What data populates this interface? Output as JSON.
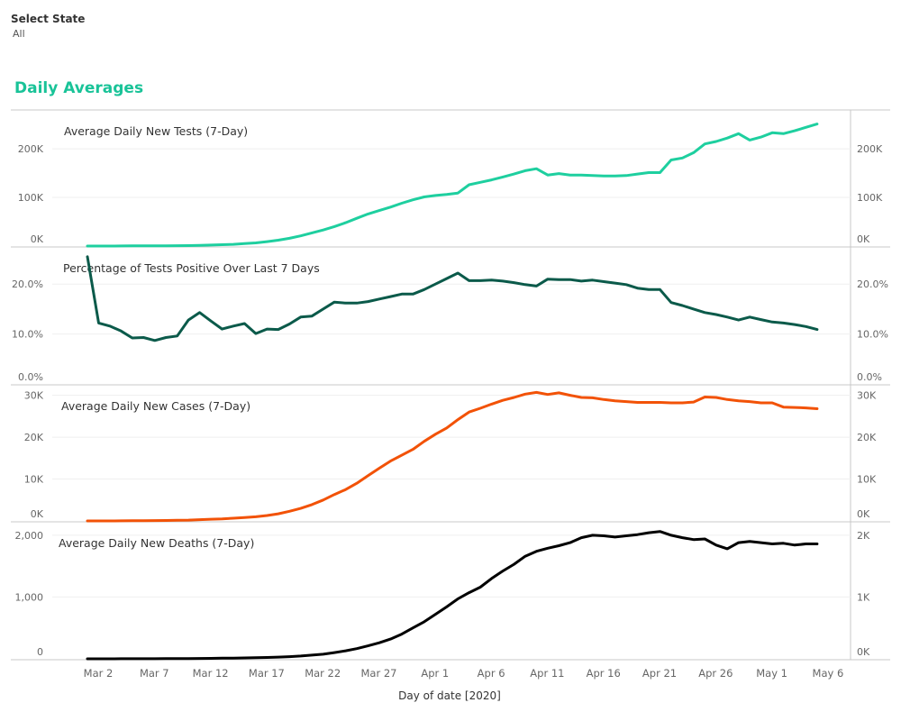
{
  "filter": {
    "label": "Select State",
    "value": "All"
  },
  "dashboard": {
    "title": "Daily Averages"
  },
  "colors": {
    "tests": "#1ecf9f",
    "positive": "#0b5a4a",
    "cases": "#f25207",
    "deaths": "#000000",
    "title": "#19c398"
  },
  "chart_data": {
    "type": "line",
    "xlabel": "Day of date [2020]",
    "x_ticks": [
      "Mar 2",
      "Mar 7",
      "Mar 12",
      "Mar 17",
      "Mar 22",
      "Mar 27",
      "Apr 1",
      "Apr 6",
      "Apr 11",
      "Apr 16",
      "Apr 21",
      "Apr 26",
      "May 1",
      "May 6"
    ],
    "x_start": "Mar 1",
    "x": [
      "Mar 1",
      "Mar 2",
      "Mar 3",
      "Mar 4",
      "Mar 5",
      "Mar 6",
      "Mar 7",
      "Mar 8",
      "Mar 9",
      "Mar 10",
      "Mar 11",
      "Mar 12",
      "Mar 13",
      "Mar 14",
      "Mar 15",
      "Mar 16",
      "Mar 17",
      "Mar 18",
      "Mar 19",
      "Mar 20",
      "Mar 21",
      "Mar 22",
      "Mar 23",
      "Mar 24",
      "Mar 25",
      "Mar 26",
      "Mar 27",
      "Mar 28",
      "Mar 29",
      "Mar 30",
      "Mar 31",
      "Apr 1",
      "Apr 2",
      "Apr 3",
      "Apr 4",
      "Apr 5",
      "Apr 6",
      "Apr 7",
      "Apr 8",
      "Apr 9",
      "Apr 10",
      "Apr 11",
      "Apr 12",
      "Apr 13",
      "Apr 14",
      "Apr 15",
      "Apr 16",
      "Apr 17",
      "Apr 18",
      "Apr 19",
      "Apr 20",
      "Apr 21",
      "Apr 22",
      "Apr 23",
      "Apr 24",
      "Apr 25",
      "Apr 26",
      "Apr 27",
      "Apr 28",
      "Apr 29",
      "Apr 30",
      "May 1",
      "May 2",
      "May 3",
      "May 4",
      "May 5"
    ],
    "grid": true,
    "panels": [
      {
        "name": "tests",
        "title": "Average Daily New Tests (7-Day)",
        "color": "#1ecf9f",
        "ylim": [
          0,
          265000
        ],
        "y_ticks": [
          0,
          100000,
          200000
        ],
        "y_tick_labels_left": [
          "0K",
          "100K",
          "200K"
        ],
        "y_tick_labels_right": [
          "0K",
          "100K",
          "200K"
        ],
        "values": [
          0,
          0,
          0,
          200,
          300,
          400,
          500,
          600,
          800,
          1000,
          1500,
          2000,
          2800,
          3500,
          5000,
          6500,
          9000,
          12000,
          16000,
          21000,
          27000,
          33000,
          40000,
          48000,
          57000,
          66000,
          73000,
          80000,
          88000,
          95000,
          101000,
          104000,
          106000,
          109000,
          126000,
          131000,
          136000,
          142000,
          148000,
          155000,
          159000,
          146000,
          149000,
          146000,
          146000,
          145000,
          144000,
          144000,
          145000,
          148000,
          151000,
          151000,
          177000,
          181000,
          192000,
          210000,
          215000,
          222000,
          231000,
          218000,
          224000,
          233000,
          231000,
          237000,
          244000,
          251000
        ]
      },
      {
        "name": "positive",
        "title": "Percentage of Tests Positive Over Last 7 Days",
        "color": "#0b5a4a",
        "ylim": [
          0,
          26
        ],
        "y_ticks": [
          0,
          10,
          20
        ],
        "y_tick_labels_left": [
          "0.0%",
          "10.0%",
          "20.0%"
        ],
        "y_tick_labels_right": [
          "0.0%",
          "10.0%",
          "20.0%"
        ],
        "values": [
          25.5,
          12.2,
          11.6,
          10.6,
          9.2,
          9.3,
          8.7,
          9.3,
          9.6,
          12.8,
          14.3,
          12.6,
          11.0,
          11.6,
          12.1,
          10.1,
          11.0,
          10.9,
          12.0,
          13.4,
          13.6,
          15.0,
          16.4,
          16.2,
          16.2,
          16.5,
          17.0,
          17.5,
          18.0,
          18.0,
          18.9,
          20.0,
          21.1,
          22.2,
          20.7,
          20.7,
          20.8,
          20.6,
          20.3,
          19.9,
          19.6,
          21.0,
          20.9,
          20.9,
          20.6,
          20.8,
          20.5,
          20.2,
          19.9,
          19.2,
          18.9,
          18.9,
          16.3,
          15.7,
          15.0,
          14.3,
          13.9,
          13.4,
          12.8,
          13.4,
          12.9,
          12.4,
          12.2,
          11.9,
          11.5,
          10.9
        ]
      },
      {
        "name": "cases",
        "title": "Average Daily New Cases (7-Day)",
        "color": "#f25207",
        "ylim": [
          0,
          31000
        ],
        "y_ticks": [
          0,
          10000,
          20000,
          30000
        ],
        "y_tick_labels_left": [
          "0K",
          "10K",
          "20K",
          "30K"
        ],
        "y_tick_labels_right": [
          "0K",
          "10K",
          "20K",
          "30K"
        ],
        "values": [
          0,
          0,
          0,
          20,
          40,
          60,
          80,
          100,
          150,
          200,
          300,
          400,
          500,
          650,
          800,
          1000,
          1300,
          1700,
          2300,
          3000,
          3900,
          5000,
          6300,
          7500,
          9000,
          10800,
          12600,
          14300,
          15700,
          17100,
          19000,
          20700,
          22200,
          24200,
          26000,
          26900,
          27900,
          28800,
          29500,
          30300,
          30700,
          30200,
          30600,
          30000,
          29500,
          29400,
          29000,
          28700,
          28500,
          28300,
          28300,
          28300,
          28200,
          28200,
          28400,
          29600,
          29500,
          29000,
          28700,
          28500,
          28200,
          28200,
          27200,
          27100,
          27000,
          26800
        ]
      },
      {
        "name": "deaths",
        "title": "Average Daily New Deaths (7-Day)",
        "color": "#000000",
        "ylim": [
          0,
          2100
        ],
        "y_ticks": [
          0,
          1000,
          2000
        ],
        "y_tick_labels_left": [
          "0",
          "1,000",
          "2,000"
        ],
        "y_tick_labels_right": [
          "0K",
          "1K",
          "2K"
        ],
        "values": [
          0,
          0,
          0,
          1,
          1,
          2,
          2,
          3,
          4,
          5,
          6,
          8,
          10,
          12,
          15,
          18,
          22,
          28,
          35,
          45,
          60,
          75,
          100,
          130,
          165,
          210,
          260,
          320,
          400,
          500,
          600,
          720,
          840,
          970,
          1070,
          1160,
          1300,
          1420,
          1530,
          1660,
          1740,
          1790,
          1830,
          1880,
          1960,
          2000,
          1990,
          1970,
          1990,
          2010,
          2040,
          2060,
          2000,
          1960,
          1930,
          1940,
          1840,
          1780,
          1880,
          1900,
          1880,
          1860,
          1870,
          1840,
          1860,
          1860
        ]
      }
    ]
  }
}
